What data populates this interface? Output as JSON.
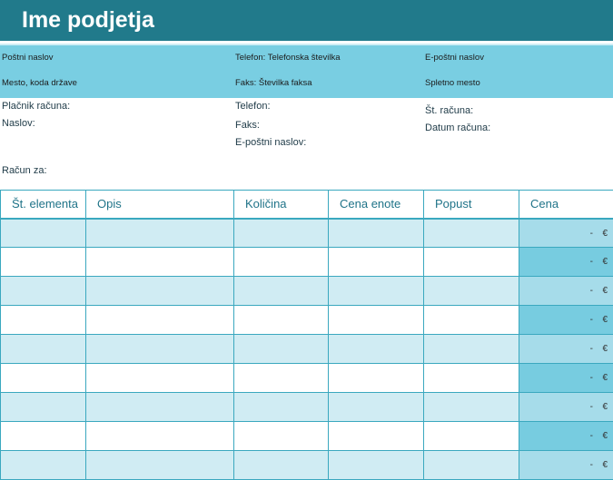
{
  "header": {
    "company_name": "Ime podjetja"
  },
  "info_band": {
    "address": "Poštni naslov",
    "city_country": "Mesto, koda države",
    "phone": "Telefon: Telefonska številka",
    "fax": "Faks: Številka faksa",
    "email": "E-poštni naslov",
    "website": "Spletno mesto"
  },
  "billing": {
    "payer_label": "Plačnik računa:",
    "address_label": "Naslov:",
    "phone_label": "Telefon:",
    "fax_label": "Faks:",
    "email_label": "E-poštni naslov:",
    "invoice_no_label": "Št. računa:",
    "invoice_date_label": "Datum računa:",
    "bill_to_label": "Račun za:"
  },
  "items_table": {
    "columns": [
      "Št. elementa",
      "Opis",
      "Količina",
      "Cena enote",
      "Popust",
      "Cena"
    ],
    "rows": [
      {
        "price_dash": "-",
        "currency": "€"
      },
      {
        "price_dash": "-",
        "currency": "€"
      },
      {
        "price_dash": "-",
        "currency": "€"
      },
      {
        "price_dash": "-",
        "currency": "€"
      },
      {
        "price_dash": "-",
        "currency": "€"
      },
      {
        "price_dash": "-",
        "currency": "€"
      },
      {
        "price_dash": "-",
        "currency": "€"
      },
      {
        "price_dash": "-",
        "currency": "€"
      },
      {
        "price_dash": "-",
        "currency": "€"
      }
    ]
  },
  "colors": {
    "header_bg": "#217a8b",
    "info_band_bg": "#79cee2",
    "row_light": "#d0ecf3",
    "price_col_dark": "#77cce0",
    "grid_line": "#3aa8bf",
    "column_header_text": "#1f7388"
  }
}
